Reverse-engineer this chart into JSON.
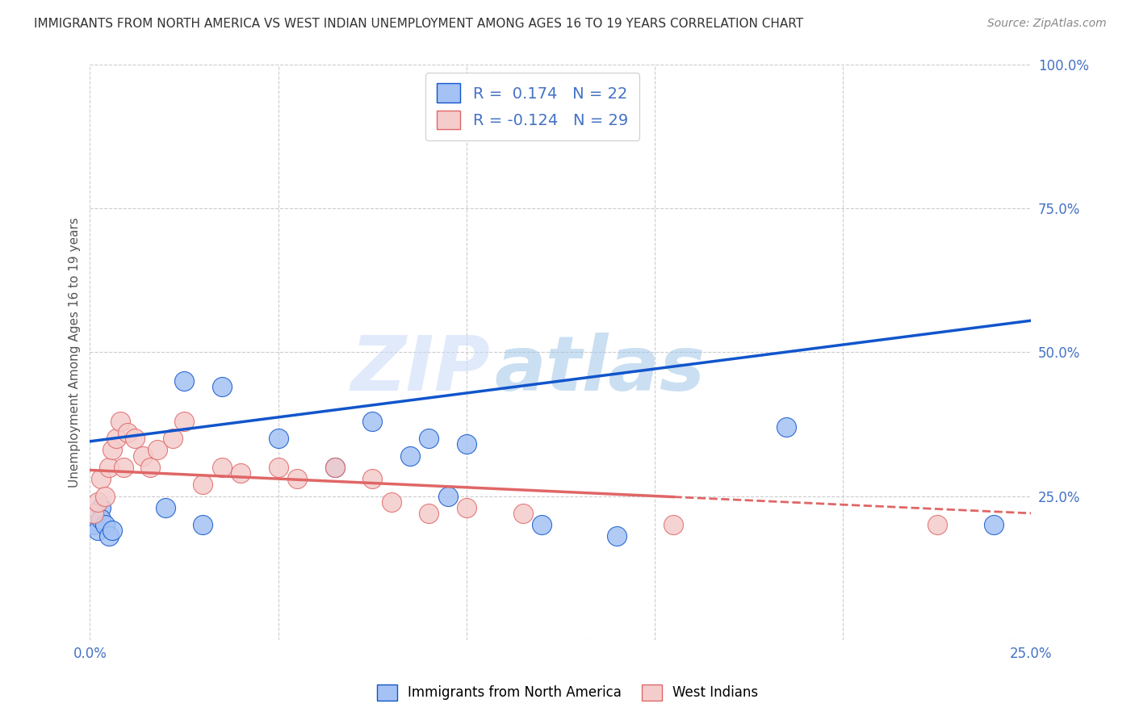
{
  "title": "IMMIGRANTS FROM NORTH AMERICA VS WEST INDIAN UNEMPLOYMENT AMONG AGES 16 TO 19 YEARS CORRELATION CHART",
  "source": "Source: ZipAtlas.com",
  "ylabel": "Unemployment Among Ages 16 to 19 years",
  "xlim": [
    0.0,
    0.25
  ],
  "ylim": [
    0.0,
    1.0
  ],
  "xticks": [
    0.0,
    0.05,
    0.1,
    0.15,
    0.2,
    0.25
  ],
  "xticklabels": [
    "0.0%",
    "",
    "",
    "",
    "",
    "25.0%"
  ],
  "yticks_right": [
    0.0,
    0.25,
    0.5,
    0.75,
    1.0
  ],
  "yticklabels_right": [
    "",
    "25.0%",
    "50.0%",
    "75.0%",
    "100.0%"
  ],
  "R_blue": 0.174,
  "N_blue": 22,
  "R_pink": -0.124,
  "N_pink": 29,
  "blue_color": "#a4c2f4",
  "pink_color": "#f4cccc",
  "trend_blue_color": "#1155cc",
  "trend_pink_color": "#e06666",
  "background_color": "#ffffff",
  "grid_color": "#cccccc",
  "blue_scatter_x": [
    0.001,
    0.002,
    0.003,
    0.003,
    0.004,
    0.005,
    0.006,
    0.02,
    0.025,
    0.03,
    0.035,
    0.05,
    0.065,
    0.075,
    0.085,
    0.09,
    0.095,
    0.1,
    0.12,
    0.14,
    0.185,
    0.24
  ],
  "blue_scatter_y": [
    0.2,
    0.19,
    0.23,
    0.21,
    0.2,
    0.18,
    0.19,
    0.23,
    0.45,
    0.2,
    0.44,
    0.35,
    0.3,
    0.38,
    0.32,
    0.35,
    0.25,
    0.34,
    0.2,
    0.18,
    0.37,
    0.2
  ],
  "pink_scatter_x": [
    0.001,
    0.002,
    0.003,
    0.004,
    0.005,
    0.006,
    0.007,
    0.008,
    0.009,
    0.01,
    0.012,
    0.014,
    0.016,
    0.018,
    0.022,
    0.025,
    0.03,
    0.035,
    0.04,
    0.05,
    0.055,
    0.065,
    0.075,
    0.08,
    0.09,
    0.1,
    0.115,
    0.155,
    0.225
  ],
  "pink_scatter_y": [
    0.22,
    0.24,
    0.28,
    0.25,
    0.3,
    0.33,
    0.35,
    0.38,
    0.3,
    0.36,
    0.35,
    0.32,
    0.3,
    0.33,
    0.35,
    0.38,
    0.27,
    0.3,
    0.29,
    0.3,
    0.28,
    0.3,
    0.28,
    0.24,
    0.22,
    0.23,
    0.22,
    0.2,
    0.2
  ],
  "watermark_zip": "ZIP",
  "watermark_atlas": "atlas",
  "legend_labels": [
    "Immigrants from North America",
    "West Indians"
  ],
  "marker_size": 300,
  "blue_line_intercept": 0.345,
  "blue_line_slope": 0.84,
  "pink_line_intercept": 0.295,
  "pink_line_slope": -0.3
}
